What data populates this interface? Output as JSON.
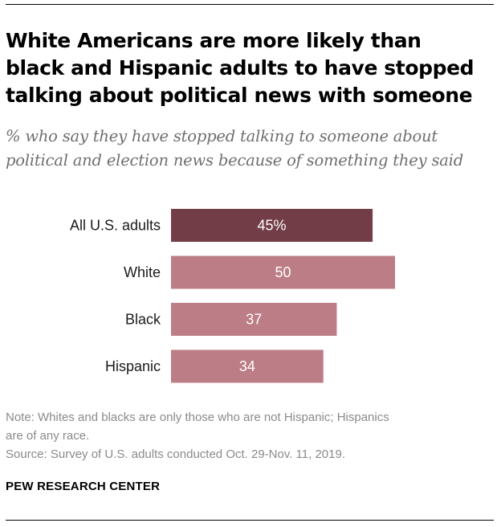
{
  "title_lines": [
    "White Americans are more likely than",
    "black and Hispanic adults to have stopped",
    "talking about political news with someone"
  ],
  "subtitle_lines": [
    "% who say they have stopped talking to someone about",
    "political and election news because of something they said"
  ],
  "chart_data": {
    "type": "bar",
    "orientation": "horizontal",
    "categories": [
      "All U.S. adults",
      "White",
      "Black",
      "Hispanic"
    ],
    "values": [
      45,
      50,
      37,
      34
    ],
    "data_labels": [
      "45%",
      "50",
      "37",
      "34"
    ],
    "xlim": [
      0,
      50
    ],
    "grid": false,
    "colors": [
      "#733d47",
      "#bd7d86",
      "#bd7d86",
      "#bd7d86"
    ],
    "label_color": "#ffffff"
  },
  "note_lines": [
    "Note: Whites and blacks are only those who are not Hispanic; Hispanics",
    "are of any race.",
    "Source: Survey of U.S. adults conducted Oct. 29-Nov. 11, 2019."
  ],
  "brand": "PEW RESEARCH CENTER"
}
